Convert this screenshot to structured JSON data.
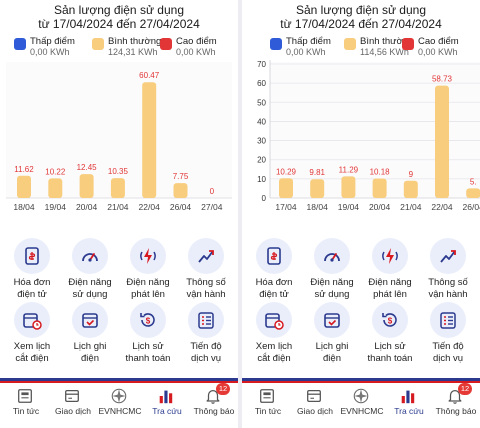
{
  "panels": [
    {
      "title_line1": "Sản lượng điện sử dụng",
      "title_line2": "từ 17/04/2024 đến 27/04/2024",
      "legend": [
        {
          "name": "Thấp điểm",
          "value": "0,00 KWh",
          "color": "#2f5bd8"
        },
        {
          "name": "Bình thường",
          "value": "124,31 KWh",
          "color": "#f8cd7e"
        },
        {
          "name": "Cao điểm",
          "value": "0,00 KWh",
          "color": "#e23636"
        }
      ]
    },
    {
      "title_line1": "Sản lượng điện sử dụng",
      "title_line2": "từ 17/04/2024 đến 27/04/2024",
      "legend": [
        {
          "name": "Thấp điểm",
          "value": "0,00 KWh",
          "color": "#2f5bd8"
        },
        {
          "name": "Bình thường",
          "value": "114,56 KWh",
          "color": "#f8cd7e"
        },
        {
          "name": "Cao điểm",
          "value": "0,00 KWh",
          "color": "#e23636"
        }
      ]
    }
  ],
  "chart_data": [
    {
      "type": "bar",
      "categories": [
        "18/04",
        "19/04",
        "20/04",
        "21/04",
        "22/04",
        "26/04",
        "27/04"
      ],
      "values": [
        11.62,
        10.22,
        12.45,
        10.35,
        60.47,
        7.75,
        0
      ],
      "value_labels": [
        "11.62",
        "10.22",
        "12.45",
        "10.35",
        "60.47",
        "7.75",
        "0"
      ],
      "ylim": [
        0,
        70
      ],
      "show_y_axis": false,
      "grid": false,
      "bar_color": "#f8cd7e",
      "label_color": "#e23636"
    },
    {
      "type": "bar",
      "categories": [
        "17/04",
        "18/04",
        "19/04",
        "20/04",
        "21/04",
        "22/04",
        "26/04"
      ],
      "values": [
        10.29,
        9.81,
        11.29,
        10.18,
        9,
        58.73,
        5
      ],
      "value_labels": [
        "10.29",
        "9.81",
        "11.29",
        "10.18",
        "9",
        "58.73",
        "5."
      ],
      "yticks": [
        "0",
        "10",
        "20",
        "30",
        "40",
        "50",
        "60",
        "70"
      ],
      "ylim": [
        0,
        70
      ],
      "show_y_axis": true,
      "grid": true,
      "bar_color": "#f8cd7e",
      "label_color": "#e23636"
    }
  ],
  "menu": [
    {
      "label": "Hóa đơn\nđiện tử",
      "icon": "invoice-icon"
    },
    {
      "label": "Điện năng\nsử dụng",
      "icon": "gauge-icon"
    },
    {
      "label": "Điện năng\nphát lên",
      "icon": "power-up-icon"
    },
    {
      "label": "Thông số\nvận hành",
      "icon": "trend-icon"
    },
    {
      "label": "Xem lịch\ncắt điện",
      "icon": "schedule-icon"
    },
    {
      "label": "Lịch ghi\nđiện",
      "icon": "calendar-check-icon"
    },
    {
      "label": "Lịch sử\nthanh toán",
      "icon": "payment-history-icon"
    },
    {
      "label": "Tiến độ\ndịch vụ",
      "icon": "checklist-icon"
    }
  ],
  "tabs": [
    {
      "label": "Tin tức",
      "icon": "news-icon"
    },
    {
      "label": "Giao dịch",
      "icon": "transaction-icon"
    },
    {
      "label": "EVNHCMC",
      "icon": "evn-logo-icon"
    },
    {
      "label": "Tra cứu",
      "icon": "bar-chart-icon"
    },
    {
      "label": "Thông báo",
      "icon": "bell-icon",
      "badge": "12"
    }
  ],
  "colors": {
    "accent_navy": "#2b3a8e",
    "accent_red": "#d71920",
    "bar": "#f8cd7e",
    "value_label": "#e23636",
    "icon_bg": "#eaeefb"
  }
}
